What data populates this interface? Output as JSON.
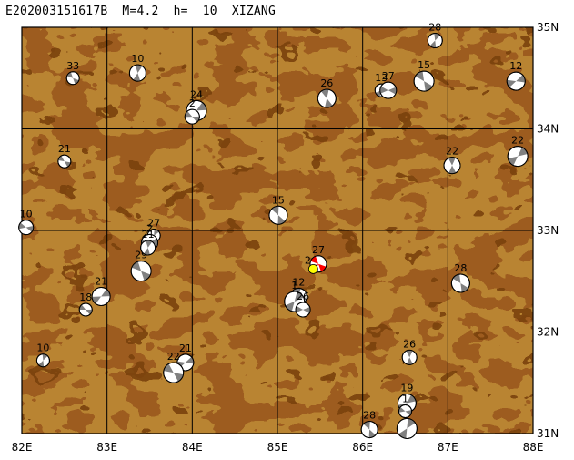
{
  "title": "E202003151617B  M=4.2  h=  10  XIZANG",
  "map": {
    "lon_range": [
      82,
      88
    ],
    "lat_range": [
      31,
      35
    ],
    "lon_labels": [
      "82E",
      "83E",
      "84E",
      "85E",
      "86E",
      "87E",
      "88E"
    ],
    "lat_labels": [
      "35N",
      "34N",
      "33N",
      "32N",
      "31N"
    ],
    "colors": {
      "terrain_base": "#9e5d20",
      "terrain_light": "#b8802e",
      "terrain_dark": "#7c4413",
      "grid": "#000000",
      "event_fill": "#ff0000",
      "event_marker": "#ffff00",
      "beachball_dark": "#808080"
    }
  },
  "mechanisms": [
    {
      "label": "33",
      "lon": 82.6,
      "lat": 34.5
    },
    {
      "label": "10",
      "lon": 83.36,
      "lat": 34.55
    },
    {
      "label": "24",
      "lon": 84.05,
      "lat": 34.18
    },
    {
      "label": "2",
      "lon": 84.0,
      "lat": 34.12
    },
    {
      "label": "26",
      "lon": 85.58,
      "lat": 34.3
    },
    {
      "label": "13",
      "lon": 86.22,
      "lat": 34.38
    },
    {
      "label": "27",
      "lon": 86.3,
      "lat": 34.38
    },
    {
      "label": "15",
      "lon": 86.72,
      "lat": 34.47
    },
    {
      "label": "28",
      "lon": 86.85,
      "lat": 34.87
    },
    {
      "label": "12",
      "lon": 87.8,
      "lat": 34.47
    },
    {
      "label": "21",
      "lon": 82.5,
      "lat": 33.68
    },
    {
      "label": "22",
      "lon": 87.05,
      "lat": 33.64
    },
    {
      "label": "22",
      "lon": 87.82,
      "lat": 33.73
    },
    {
      "label": "10",
      "lon": 82.05,
      "lat": 33.03
    },
    {
      "label": "15",
      "lon": 85.01,
      "lat": 33.15
    },
    {
      "label": "27",
      "lon": 83.55,
      "lat": 32.95
    },
    {
      "label": "2",
      "lon": 83.5,
      "lat": 32.88
    },
    {
      "label": "29",
      "lon": 83.4,
      "lat": 32.6
    },
    {
      "label": "21",
      "lon": 83.48,
      "lat": 32.83
    },
    {
      "label": "21",
      "lon": 82.93,
      "lat": 32.35
    },
    {
      "label": "18",
      "lon": 82.75,
      "lat": 32.22
    },
    {
      "label": "12",
      "lon": 85.25,
      "lat": 32.35
    },
    {
      "label": "1",
      "lon": 85.2,
      "lat": 32.3
    },
    {
      "label": "26",
      "lon": 85.3,
      "lat": 32.22
    },
    {
      "label": "28",
      "lon": 87.15,
      "lat": 32.48
    },
    {
      "label": "10",
      "lon": 82.25,
      "lat": 31.72
    },
    {
      "label": "21",
      "lon": 83.92,
      "lat": 31.7
    },
    {
      "label": "22",
      "lon": 83.78,
      "lat": 31.6
    },
    {
      "label": "26",
      "lon": 86.55,
      "lat": 31.75
    },
    {
      "label": "19",
      "lon": 86.52,
      "lat": 31.3
    },
    {
      "label": "1",
      "lon": 86.5,
      "lat": 31.22
    },
    {
      "label": "28",
      "lon": 86.08,
      "lat": 31.04
    },
    {
      "label": "",
      "lon": 86.52,
      "lat": 31.05
    }
  ],
  "main_event": {
    "label": "27",
    "lon": 85.48,
    "lat": 32.67
  },
  "secondary_event": {
    "label": "2",
    "lon": 85.42,
    "lat": 32.62
  }
}
